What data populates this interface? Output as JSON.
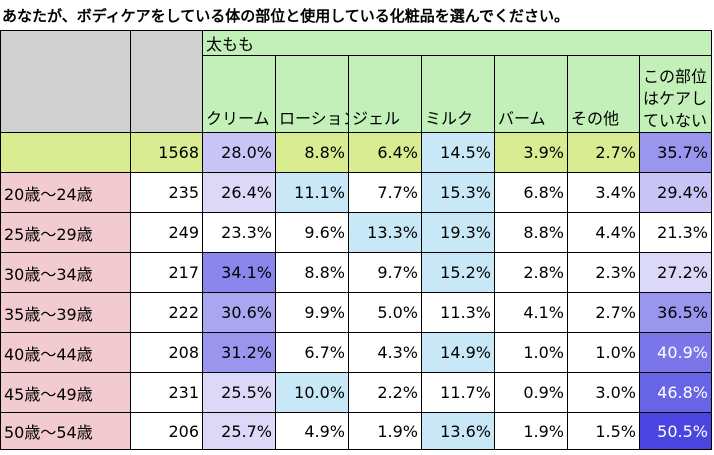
{
  "title": "あなたが、ボディケアをしている体の部位と使用している化粧品を選んでください。",
  "group_header": "太もも",
  "columns": [
    "クリーム",
    "ローション",
    "ジェル",
    "ミルク",
    "バーム",
    "その他",
    "この部位はケアしていない"
  ],
  "column_last_lines": [
    "この部位",
    "はケアし",
    "ていない"
  ],
  "total_row": {
    "label": "",
    "n": "1568",
    "values": [
      "28.0%",
      "8.8%",
      "6.4%",
      "14.5%",
      "3.9%",
      "2.7%",
      "35.7%"
    ]
  },
  "rows": [
    {
      "label": "20歳～24歳",
      "n": "235",
      "values": [
        "26.4%",
        "11.1%",
        "7.7%",
        "15.3%",
        "6.8%",
        "3.4%",
        "29.4%"
      ]
    },
    {
      "label": "25歳～29歳",
      "n": "249",
      "values": [
        "23.3%",
        "9.6%",
        "13.3%",
        "19.3%",
        "8.8%",
        "4.4%",
        "21.3%"
      ]
    },
    {
      "label": "30歳～34歳",
      "n": "217",
      "values": [
        "34.1%",
        "8.8%",
        "9.7%",
        "15.2%",
        "2.8%",
        "2.3%",
        "27.2%"
      ]
    },
    {
      "label": "35歳～39歳",
      "n": "222",
      "values": [
        "30.6%",
        "9.9%",
        "5.0%",
        "11.3%",
        "4.1%",
        "2.7%",
        "36.5%"
      ]
    },
    {
      "label": "40歳～44歳",
      "n": "208",
      "values": [
        "31.2%",
        "6.7%",
        "4.3%",
        "14.9%",
        "1.0%",
        "1.0%",
        "40.9%"
      ]
    },
    {
      "label": "45歳～49歳",
      "n": "231",
      "values": [
        "25.5%",
        "10.0%",
        "2.2%",
        "11.7%",
        "0.9%",
        "3.0%",
        "46.8%"
      ]
    },
    {
      "label": "50歳～54歳",
      "n": "206",
      "values": [
        "25.7%",
        "4.9%",
        "1.9%",
        "13.6%",
        "1.9%",
        "1.5%",
        "50.5%"
      ]
    }
  ],
  "cell_colors": [
    [
      "#c8c4f6",
      "#d9ec91",
      "#d9ec91",
      "#c8e8f8",
      "#d9ec91",
      "#d9ec91",
      "#9a96ee"
    ],
    [
      "#dcd8f8",
      "#c8e8f8",
      "#ffffff",
      "#c8e8f8",
      "#ffffff",
      "#ffffff",
      "#c8c4f6"
    ],
    [
      "#ffffff",
      "#ffffff",
      "#c8e8f8",
      "#c8e8f8",
      "#ffffff",
      "#ffffff",
      "#ffffff"
    ],
    [
      "#8a86ec",
      "#ffffff",
      "#ffffff",
      "#c8e8f8",
      "#ffffff",
      "#ffffff",
      "#dcd8f8"
    ],
    [
      "#aaa6f0",
      "#ffffff",
      "#ffffff",
      "#ffffff",
      "#ffffff",
      "#ffffff",
      "#9a96ee"
    ],
    [
      "#9a96ee",
      "#ffffff",
      "#ffffff",
      "#c8e8f8",
      "#ffffff",
      "#ffffff",
      "#7a76ea"
    ],
    [
      "#dcd8f8",
      "#c8e8f8",
      "#ffffff",
      "#ffffff",
      "#ffffff",
      "#ffffff",
      "#6864e6"
    ],
    [
      "#dcd8f8",
      "#ffffff",
      "#ffffff",
      "#c8e8f8",
      "#ffffff",
      "#ffffff",
      "#4a44e0"
    ]
  ],
  "light_text_threshold": [
    "#7a76ea",
    "#6864e6",
    "#4a44e0",
    "#9a96ee"
  ]
}
